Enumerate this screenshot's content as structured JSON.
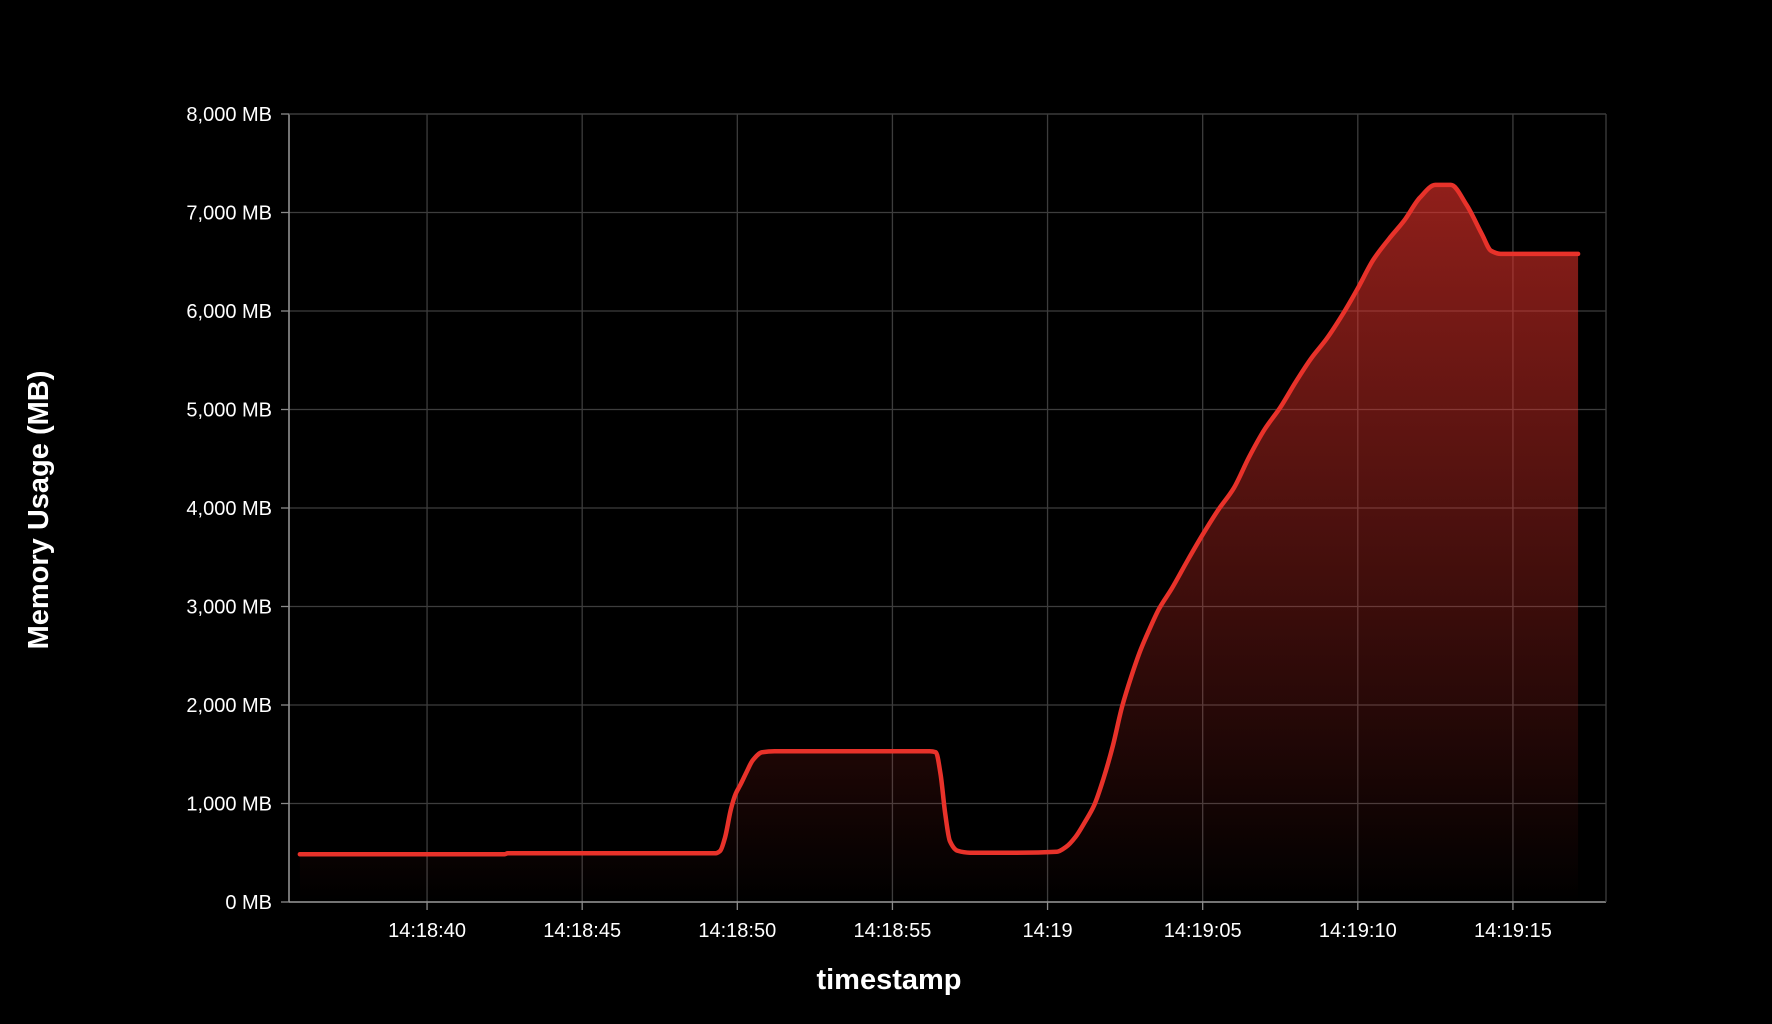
{
  "chart_data": {
    "type": "area",
    "title": "",
    "xlabel": "timestamp",
    "ylabel": "Memory Usage (MB)",
    "x_tick_labels": [
      "14:18:40",
      "14:18:45",
      "14:18:50",
      "14:18:55",
      "14:19",
      "14:19:05",
      "14:19:10",
      "14:19:15"
    ],
    "x_tick_seconds": [
      40,
      45,
      50,
      55,
      60,
      65,
      70,
      75
    ],
    "y_tick_labels": [
      "0 MB",
      "1,000 MB",
      "2,000 MB",
      "3,000 MB",
      "4,000 MB",
      "5,000 MB",
      "6,000 MB",
      "7,000 MB",
      "8,000 MB"
    ],
    "y_tick_values": [
      0,
      1000,
      2000,
      3000,
      4000,
      5000,
      6000,
      7000,
      8000
    ],
    "xlim_seconds": [
      35.55,
      78.0
    ],
    "ylim": [
      0,
      8000
    ],
    "grid": true,
    "line_color": "#e8322a",
    "fill_color": "#e8322a",
    "series": [
      {
        "time_seconds": [
          35.9,
          42.5,
          42.6,
          49.3,
          49.45,
          49.6,
          49.8,
          49.95,
          50.1,
          50.3,
          50.5,
          50.8,
          51.2,
          52,
          55,
          56.2,
          56.4,
          56.55,
          56.7,
          56.85,
          57.1,
          57.5,
          59,
          60.3,
          60.6,
          60.9,
          61.2,
          61.5,
          61.8,
          62.1,
          62.4,
          62.7,
          63.0,
          63.3,
          63.6,
          64.0,
          64.5,
          65.0,
          65.5,
          66.0,
          66.5,
          67.0,
          67.5,
          68.0,
          68.5,
          69.0,
          69.5,
          70.0,
          70.5,
          71.0,
          71.5,
          72.0,
          72.5,
          73.0,
          73.5,
          74.0,
          74.3,
          74.6,
          74.9,
          75.1,
          75.3,
          75.5,
          75.7,
          75.9,
          76.1,
          76.4,
          77.1
        ],
        "values": [
          485,
          485,
          495,
          495,
          520,
          650,
          950,
          1100,
          1190,
          1320,
          1440,
          1520,
          1530,
          1530,
          1530,
          1530,
          1520,
          1300,
          900,
          620,
          520,
          500,
          500,
          510,
          560,
          660,
          810,
          980,
          1250,
          1580,
          1980,
          2290,
          2560,
          2780,
          2980,
          3180,
          3460,
          3730,
          3980,
          4200,
          4520,
          4800,
          5020,
          5280,
          5520,
          5720,
          5960,
          6230,
          6520,
          6730,
          6920,
          7150,
          7280,
          7280,
          7080,
          6780,
          6610,
          6580,
          6580,
          6580,
          6580,
          6580,
          6580,
          6580,
          6580,
          6580,
          6580
        ]
      }
    ]
  }
}
